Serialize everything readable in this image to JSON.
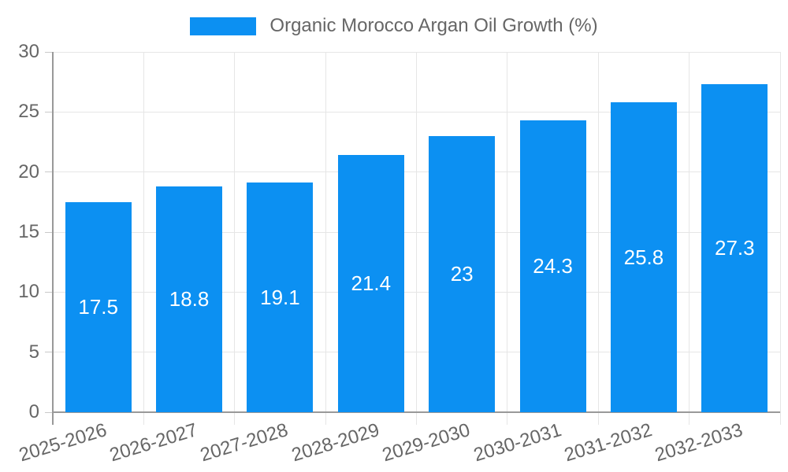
{
  "legend": {
    "label": "Organic Morocco Argan Oil Growth (%)"
  },
  "chart_data": {
    "type": "bar",
    "title": "",
    "categories": [
      "2025-2026",
      "2026-2027",
      "2027-2028",
      "2028-2029",
      "2029-2030",
      "2030-2031",
      "2031-2032",
      "2032-2033"
    ],
    "series": [
      {
        "name": "Organic Morocco Argan Oil Growth (%)",
        "values": [
          17.5,
          18.8,
          19.1,
          21.4,
          23,
          24.3,
          25.8,
          27.3
        ],
        "value_labels": [
          "17.5",
          "18.8",
          "19.1",
          "21.4",
          "23",
          "24.3",
          "25.8",
          "27.3"
        ]
      }
    ],
    "xlabel": "",
    "ylabel": "",
    "ylim": [
      0,
      30
    ],
    "yticks": [
      0,
      5,
      10,
      15,
      20,
      25,
      30
    ],
    "grid": true,
    "legend_position": "top",
    "value_labels_position": "center-inside",
    "xtick_rotation_deg": -17
  },
  "colors": {
    "bar": "#0c90f2",
    "axis_text": "#666666",
    "legend_text": "#666666",
    "gridline": "#e6e6e6",
    "axis_line": "#999999",
    "value_label": "#ffffff",
    "background": "#ffffff"
  }
}
